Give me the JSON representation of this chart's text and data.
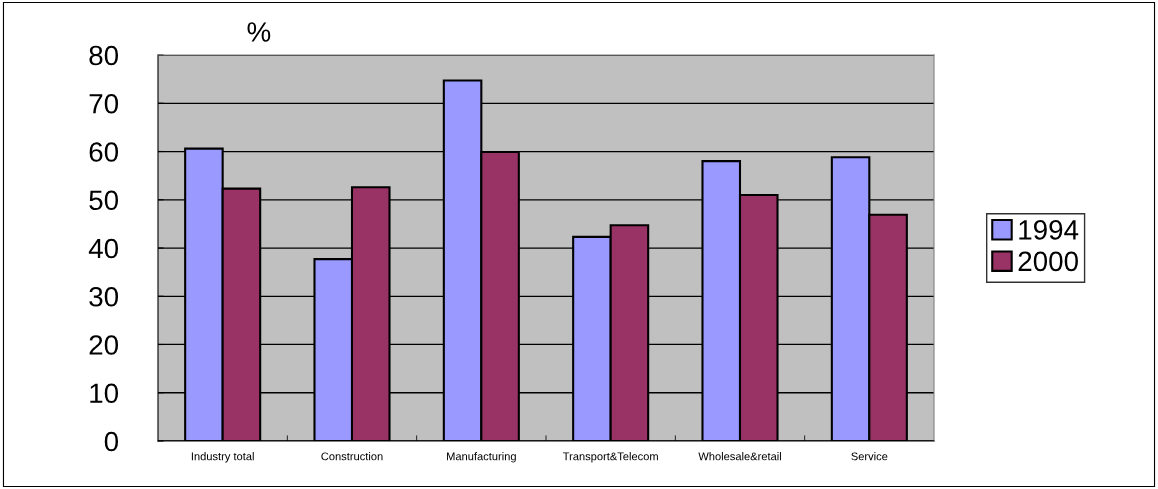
{
  "chart_data": {
    "type": "bar",
    "ylabel": "%",
    "categories": [
      "Industry total",
      "Construction",
      "Manufacturing",
      "Transport&Telecom",
      "Wholesale&retail",
      "Service"
    ],
    "series": [
      {
        "name": "1994",
        "color": "#9999ff",
        "values": [
          60.6,
          37.7,
          74.7,
          42.3,
          58.0,
          58.8
        ]
      },
      {
        "name": "2000",
        "color": "#993366",
        "values": [
          52.3,
          52.6,
          59.9,
          44.7,
          51.0,
          46.9
        ]
      }
    ],
    "ylim": [
      0,
      80
    ],
    "yticks": [
      0,
      10,
      20,
      30,
      40,
      50,
      60,
      70,
      80
    ],
    "grid": "y",
    "legend": "right"
  }
}
